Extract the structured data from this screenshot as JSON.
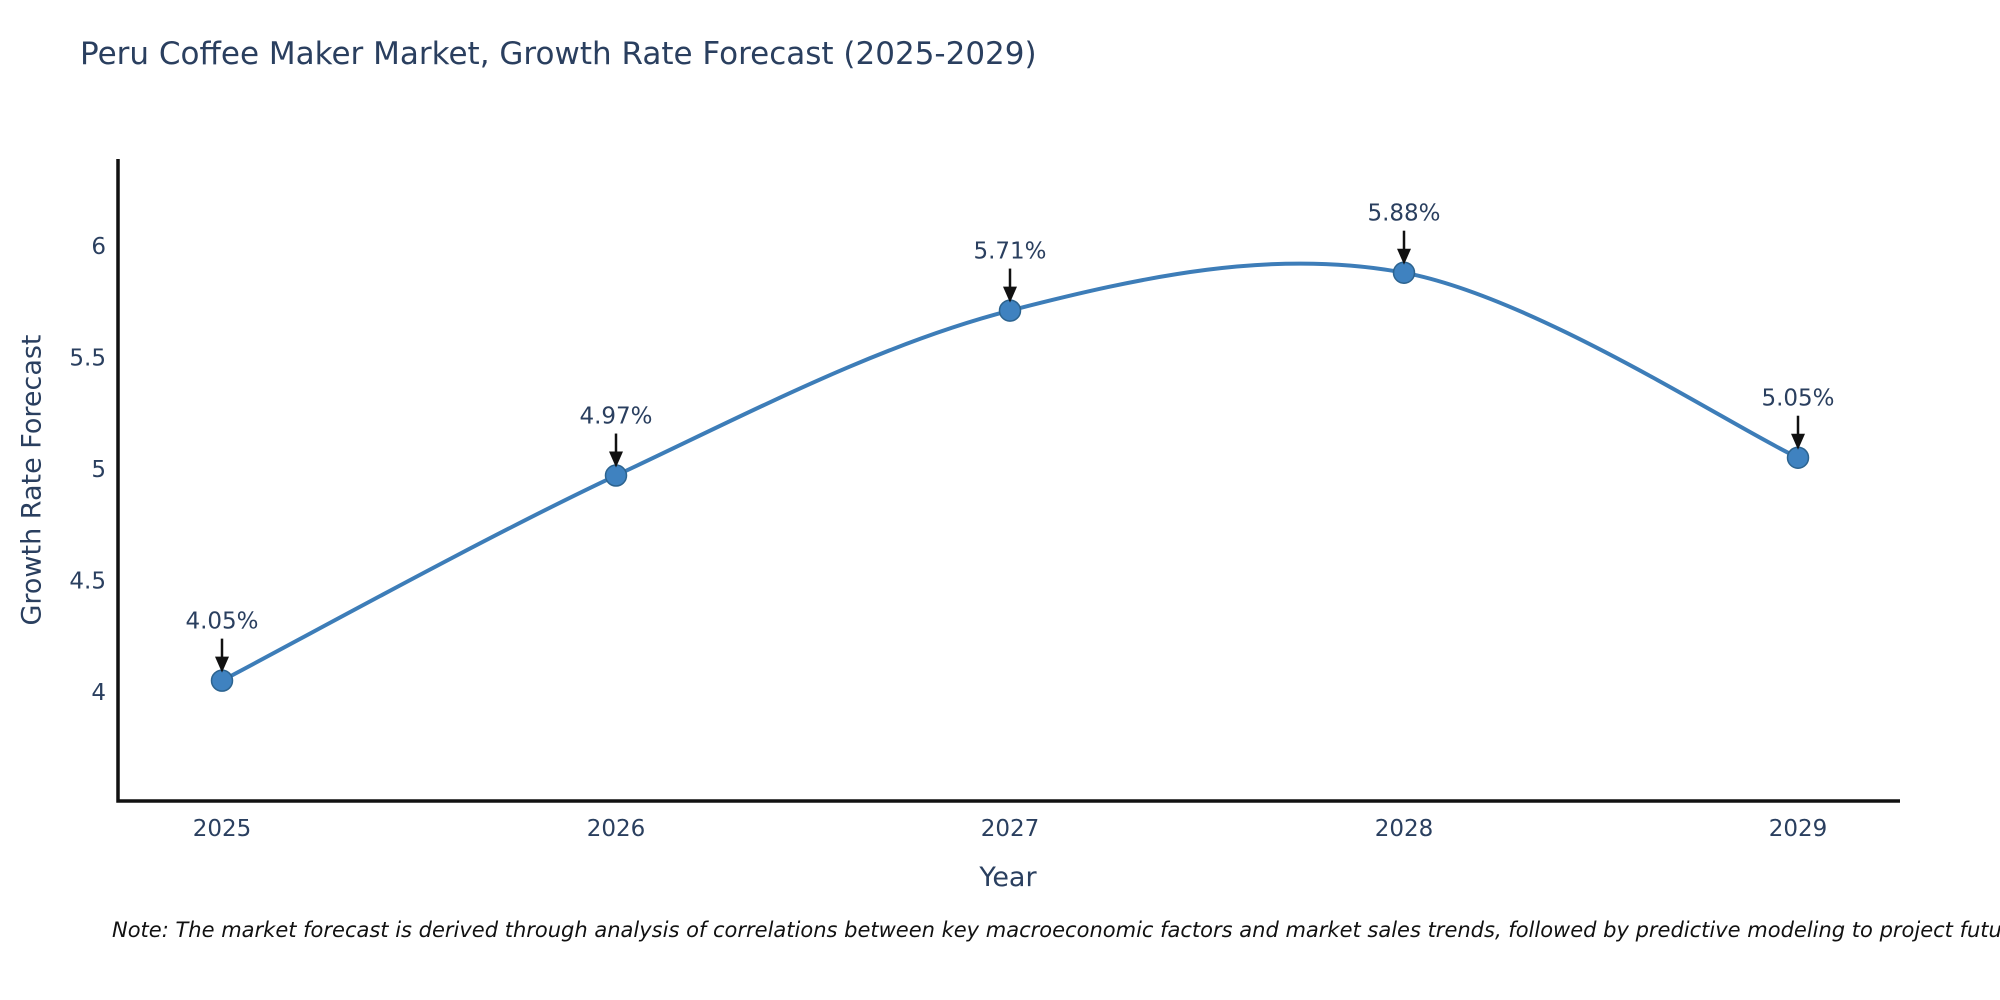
{
  "page": {
    "background_color": "#ffffff"
  },
  "chart": {
    "title": "Peru Coffee Maker Market, Growth Rate Forecast (2025-2029)",
    "note": "Note: The market forecast is derived through analysis of correlations between key macroeconomic factors and market sales trends, followed by predictive modeling to project future sales"
  },
  "chart_data": {
    "type": "line",
    "title": "Peru Coffee Maker Market, Growth Rate Forecast (2025-2029)",
    "xlabel": "Year",
    "ylabel": "Growth Rate Forecast",
    "x": [
      2025,
      2026,
      2027,
      2028,
      2029
    ],
    "values": [
      4.05,
      4.97,
      5.71,
      5.88,
      5.05
    ],
    "point_labels": [
      "4.05%",
      "4.97%",
      "5.71%",
      "5.88%",
      "5.05%"
    ],
    "x_ticks": [
      "2025",
      "2026",
      "2027",
      "2028",
      "2029"
    ],
    "y_ticks": [
      4,
      4.5,
      5,
      5.5,
      6
    ],
    "ylim": [
      3.51,
      6.39
    ],
    "line_shape": "spline",
    "grid": false,
    "legend": "none",
    "colors": {
      "line": "#3d7db8",
      "marker_fill": "#3f82c0",
      "marker_edge": "#2c638f",
      "axis": "#111111",
      "text": "#2a3f5f",
      "annotation_arrow": "#111111"
    }
  }
}
